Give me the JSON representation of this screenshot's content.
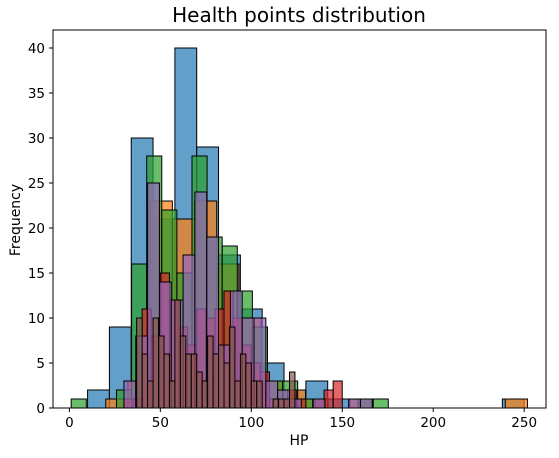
{
  "chart_data": {
    "type": "bar",
    "chart_kind": "histogram",
    "title": "Health points distribution",
    "xlabel": "HP",
    "ylabel": "Frequency",
    "xlim": [
      -9,
      262
    ],
    "ylim": [
      0,
      42
    ],
    "xticks": [
      0,
      50,
      100,
      150,
      200,
      250
    ],
    "yticks": [
      0,
      5,
      10,
      15,
      20,
      25,
      30,
      35,
      40
    ],
    "grid": false,
    "legend": "none",
    "series": [
      {
        "color": "#1f77b4",
        "bin_width": 12,
        "bins": [
          [
            10,
            2
          ],
          [
            22,
            9
          ],
          [
            34,
            30
          ],
          [
            46,
            21
          ],
          [
            58,
            40
          ],
          [
            70,
            29
          ],
          [
            82,
            17
          ],
          [
            94,
            11
          ],
          [
            106,
            5
          ],
          [
            118,
            2
          ],
          [
            130,
            3
          ],
          [
            142,
            1
          ],
          [
            154,
            1
          ],
          [
            166,
            0
          ],
          [
            178,
            0
          ],
          [
            190,
            0
          ],
          [
            202,
            0
          ],
          [
            214,
            0
          ],
          [
            226,
            0
          ],
          [
            238,
            1
          ]
        ]
      },
      {
        "color": "#ff7f0e",
        "bin_width": 12.2,
        "bins": [
          [
            20,
            1
          ],
          [
            32.2,
            3
          ],
          [
            44.4,
            23
          ],
          [
            56.6,
            21
          ],
          [
            68.8,
            23
          ],
          [
            81,
            16
          ],
          [
            93.2,
            10
          ],
          [
            105.4,
            3
          ],
          [
            117.6,
            2
          ],
          [
            129.8,
            1
          ],
          [
            142,
            0
          ],
          [
            154.2,
            1
          ],
          [
            166.4,
            0
          ],
          [
            178.6,
            0
          ],
          [
            190.8,
            0
          ],
          [
            203,
            0
          ],
          [
            215.2,
            0
          ],
          [
            227.4,
            0
          ],
          [
            239.6,
            1
          ]
        ]
      },
      {
        "color": "#2ca02c",
        "bin_width": 8.3,
        "bins": [
          [
            1,
            1
          ],
          [
            9.3,
            0
          ],
          [
            17.6,
            0
          ],
          [
            25.9,
            2
          ],
          [
            34.2,
            16
          ],
          [
            42.5,
            28
          ],
          [
            50.8,
            22
          ],
          [
            59.1,
            15
          ],
          [
            67.4,
            28
          ],
          [
            75.7,
            19
          ],
          [
            84,
            18
          ],
          [
            92.3,
            13
          ],
          [
            100.6,
            9
          ],
          [
            108.9,
            3
          ],
          [
            117.2,
            3
          ],
          [
            125.5,
            1
          ],
          [
            133.8,
            1
          ],
          [
            142.1,
            0
          ],
          [
            150.4,
            0
          ],
          [
            158.7,
            1
          ],
          [
            167,
            1
          ]
        ]
      },
      {
        "color": "#d62728",
        "bin_width": 5,
        "bins": [
          [
            30,
            1
          ],
          [
            35,
            1
          ],
          [
            40,
            11
          ],
          [
            45,
            8
          ],
          [
            50,
            15
          ],
          [
            55,
            12
          ],
          [
            60,
            9
          ],
          [
            65,
            7
          ],
          [
            70,
            11
          ],
          [
            75,
            10
          ],
          [
            80,
            11
          ],
          [
            85,
            13
          ],
          [
            90,
            10
          ],
          [
            95,
            7
          ],
          [
            100,
            5
          ],
          [
            105,
            4
          ],
          [
            110,
            1
          ],
          [
            115,
            1
          ],
          [
            120,
            2
          ],
          [
            125,
            1
          ],
          [
            130,
            0
          ],
          [
            135,
            1
          ],
          [
            140,
            2
          ],
          [
            145,
            3
          ]
        ]
      },
      {
        "color": "#9467bd",
        "bin_width": 6.5,
        "bins": [
          [
            30,
            3
          ],
          [
            36.5,
            8
          ],
          [
            43,
            25
          ],
          [
            49.5,
            14
          ],
          [
            56,
            12
          ],
          [
            62.5,
            17
          ],
          [
            69,
            24
          ],
          [
            75.5,
            19
          ],
          [
            82,
            7
          ],
          [
            88.5,
            13
          ],
          [
            95,
            10
          ],
          [
            101.5,
            10
          ],
          [
            108,
            3
          ],
          [
            114.5,
            2
          ],
          [
            121,
            1
          ],
          [
            127.5,
            0
          ],
          [
            134,
            1
          ],
          [
            140.5,
            0
          ],
          [
            147,
            0
          ],
          [
            153.5,
            1
          ],
          [
            160,
            1
          ]
        ]
      },
      {
        "color": "#8c564b",
        "bin_width": 3,
        "bins": [
          [
            37,
            10
          ],
          [
            40,
            6
          ],
          [
            43,
            3
          ],
          [
            46,
            10
          ],
          [
            49,
            8
          ],
          [
            52,
            6
          ],
          [
            55,
            3
          ],
          [
            58,
            12
          ],
          [
            61,
            8
          ],
          [
            64,
            6
          ],
          [
            67,
            6
          ],
          [
            70,
            4
          ],
          [
            73,
            3
          ],
          [
            76,
            8
          ],
          [
            79,
            6
          ],
          [
            82,
            7
          ],
          [
            85,
            5
          ],
          [
            88,
            9
          ],
          [
            91,
            3
          ],
          [
            94,
            6
          ],
          [
            97,
            5
          ],
          [
            100,
            3
          ],
          [
            103,
            3
          ],
          [
            106,
            0
          ],
          [
            109,
            0
          ],
          [
            112,
            1
          ],
          [
            115,
            1
          ],
          [
            118,
            1
          ],
          [
            121,
            4
          ]
        ]
      }
    ]
  }
}
